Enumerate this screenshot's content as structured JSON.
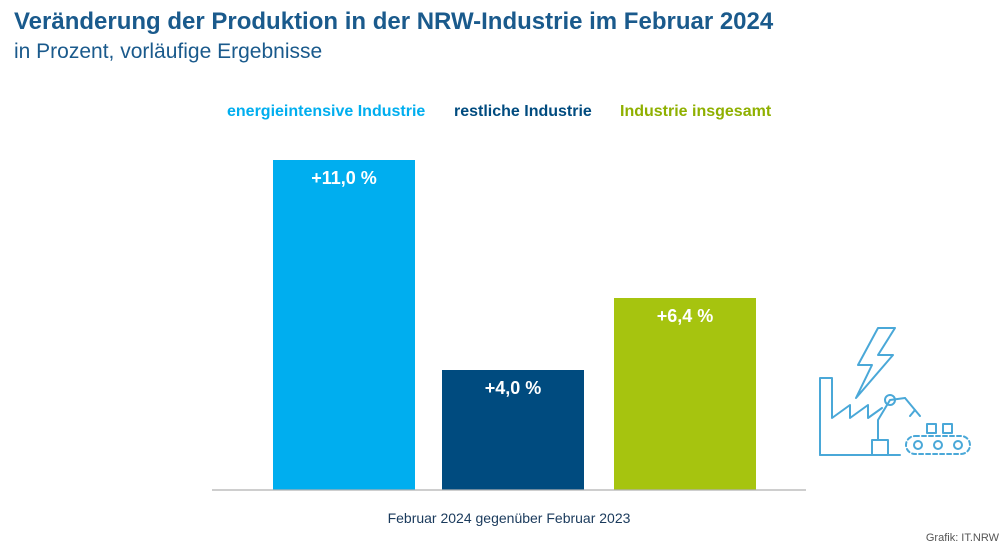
{
  "chart_data": {
    "type": "bar",
    "title": "Veränderung der Produktion in der NRW-Industrie im Februar 2024",
    "subtitle": "in Prozent, vorläufige Ergebnisse",
    "categories": [
      "Februar 2024 gegenüber Februar 2023"
    ],
    "series": [
      {
        "name": "energieintensive Industrie",
        "values": [
          11.0
        ],
        "label": "+11,0 %",
        "color": "#00aeef"
      },
      {
        "name": "restliche Industrie",
        "values": [
          4.0
        ],
        "label": "+4,0 %",
        "color": "#004b7f"
      },
      {
        "name": "Industrie insgesamt",
        "values": [
          6.4
        ],
        "label": "+6,4 %",
        "color": "#a6c40f"
      }
    ],
    "ylim": [
      0,
      11.5
    ],
    "grid": false,
    "legend_position": "top-center"
  },
  "source": "Grafik: IT.NRW",
  "icons": {
    "decoration": "factory-lightning-robot-icon",
    "color": "#4aa8d8"
  }
}
